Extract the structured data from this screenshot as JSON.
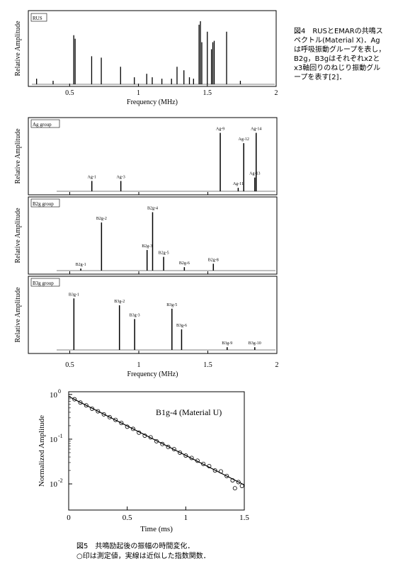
{
  "figure4": {
    "caption": "図4　RUSとEMARの共鳴スペクトル(Material X)．Agは呼吸振動グループを表し，B2g，B3gはそれぞれx2とx3軸回りのねじり振動グループを表す[2]．",
    "rus": {
      "label": "RUS",
      "ylabel": "Relative Amplitude",
      "xlabel": "Frequency (MHz)",
      "xlim": [
        0.2,
        2
      ],
      "xticks": [
        0.5,
        1,
        1.5,
        2
      ],
      "ylim": [
        0,
        100
      ],
      "x": [
        0.26,
        0.38,
        0.53,
        0.54,
        0.66,
        0.73,
        0.87,
        0.97,
        1.06,
        1.1,
        1.17,
        1.24,
        1.28,
        1.33,
        1.37,
        1.4,
        1.44,
        1.45,
        1.46,
        1.5,
        1.53,
        1.54,
        1.55,
        1.64,
        1.74
      ],
      "values": [
        8,
        5,
        70,
        65,
        40,
        38,
        25,
        10,
        15,
        10,
        8,
        8,
        25,
        20,
        10,
        8,
        85,
        90,
        60,
        75,
        50,
        60,
        62,
        75,
        5
      ]
    },
    "emar": {
      "ylabel": "Relative Amplitude",
      "xlabel": "Frequency (MHz)",
      "xlim": [
        0.2,
        2
      ],
      "xticks": [
        0.5,
        1,
        1.5,
        2
      ],
      "ylim": [
        0,
        100
      ],
      "groups": [
        {
          "label": "Ag group",
          "peaks": [
            "Ag-1",
            "Ag-3",
            "Ag-9",
            "Ag-11",
            "Ag-12",
            "Ag-13",
            "Ag-14"
          ],
          "x": [
            0.66,
            0.87,
            1.59,
            1.72,
            1.76,
            1.84,
            1.85
          ],
          "values": [
            15,
            15,
            85,
            5,
            70,
            20,
            85
          ]
        },
        {
          "label": "B2g group",
          "peaks": [
            "B2g-1",
            "B2g-2",
            "B2g-3",
            "B2g-4",
            "B2g-5",
            "B2g-6",
            "B2g-8"
          ],
          "x": [
            0.58,
            0.73,
            1.06,
            1.1,
            1.18,
            1.33,
            1.54
          ],
          "values": [
            3,
            70,
            30,
            85,
            20,
            5,
            10
          ]
        },
        {
          "label": "B3g group",
          "peaks": [
            "B3g-1",
            "B3g-2",
            "B3g-3",
            "B3g-5",
            "B3g-6",
            "B3g-9",
            "B3g-10"
          ],
          "x": [
            0.53,
            0.86,
            0.97,
            1.24,
            1.31,
            1.64,
            1.84
          ],
          "values": [
            75,
            65,
            45,
            60,
            30,
            4,
            4
          ]
        }
      ]
    }
  },
  "figure5": {
    "caption": [
      "図5　共鳴励起後の振幅の時間変化．",
      "○印は測定値，実線は近似した指数関数．"
    ],
    "label": "B1g-4 (Material U)",
    "xlabel": "Time (ms)",
    "ylabel": "Normalized Amplitude",
    "xlim": [
      0,
      1.5
    ],
    "xticks": [
      0,
      0.5,
      1,
      1.5
    ],
    "ylim": [
      0.0026,
      1.15
    ],
    "log_y": true,
    "yticks": [
      {
        "value": 1,
        "label": "10",
        "exponent": "0"
      },
      {
        "value": 0.1,
        "label": "10",
        "exponent": "-1"
      },
      {
        "value": 0.01,
        "label": "10",
        "exponent": "-2"
      }
    ],
    "points": {
      "x": [
        0.05,
        0.1,
        0.15,
        0.2,
        0.25,
        0.3,
        0.35,
        0.4,
        0.45,
        0.5,
        0.55,
        0.6,
        0.65,
        0.7,
        0.75,
        0.8,
        0.85,
        0.9,
        0.95,
        1.0,
        1.05,
        1.1,
        1.15,
        1.2,
        1.25,
        1.3,
        1.35,
        1.4,
        1.42,
        1.45,
        1.48
      ],
      "values": [
        0.78,
        0.66,
        0.57,
        0.48,
        0.42,
        0.36,
        0.31,
        0.27,
        0.23,
        0.19,
        0.17,
        0.14,
        0.12,
        0.11,
        0.09,
        0.078,
        0.067,
        0.06,
        0.05,
        0.043,
        0.038,
        0.033,
        0.028,
        0.025,
        0.02,
        0.019,
        0.015,
        0.012,
        0.008,
        0.011,
        0.009
      ]
    },
    "fit": {
      "x": [
        0,
        1.5
      ],
      "values": [
        0.9,
        0.0095
      ]
    }
  }
}
